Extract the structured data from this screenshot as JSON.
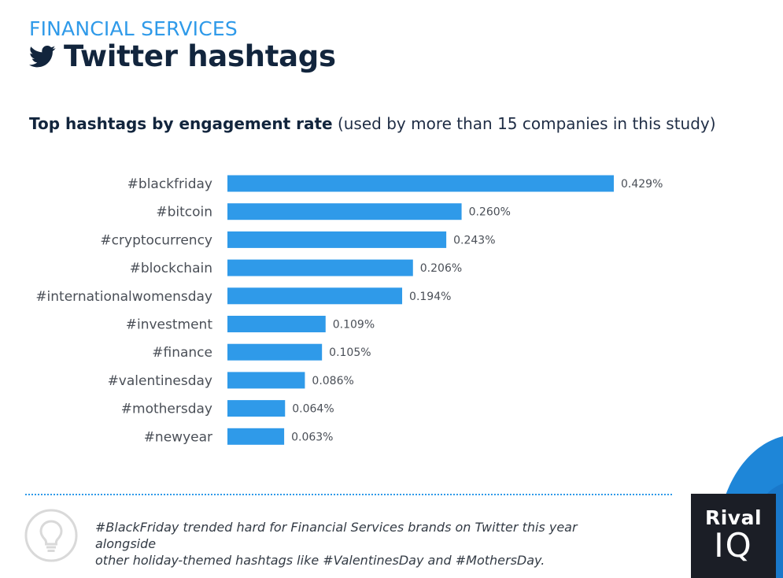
{
  "header": {
    "section_label": "FINANCIAL SERVICES",
    "title": "Twitter hashtags",
    "title_icon": "twitter-bird-icon"
  },
  "chart_subtitle": {
    "bold": "Top hashtags by engagement rate",
    "light": "(used by more than 15 companies in this study)"
  },
  "chart_data": {
    "type": "bar",
    "orientation": "horizontal",
    "title": "Top hashtags by engagement rate (used by more than 15 companies in this study)",
    "categories": [
      "#blackfriday",
      "#bitcoin",
      "#cryptocurrency",
      "#blockchain",
      "#internationalwomensday",
      "#investment",
      "#finance",
      "#valentinesday",
      "#mothersday",
      "#newyear"
    ],
    "values": [
      0.429,
      0.26,
      0.243,
      0.206,
      0.194,
      0.109,
      0.105,
      0.086,
      0.064,
      0.063
    ],
    "value_labels": [
      "0.429%",
      "0.260%",
      "0.243%",
      "0.206%",
      "0.194%",
      "0.109%",
      "0.105%",
      "0.086%",
      "0.064%",
      "0.063%"
    ],
    "unit": "%",
    "xlim": [
      0,
      0.429
    ],
    "grid": false,
    "legend": "none",
    "bar_color": "#2f9ae9"
  },
  "footnote": {
    "icon": "lightbulb-icon",
    "text_line1": "#BlackFriday trended hard for Financial Services brands on Twitter this year alongside",
    "text_line2": "other holiday-themed hashtags like #ValentinesDay and #MothersDay."
  },
  "logo": {
    "line1": "Rival",
    "line2": "IQ"
  },
  "colors": {
    "accent": "#2f9ae9",
    "title": "#12253d",
    "logo_bg": "#1b1e26",
    "deco_blue": "#1e86d8",
    "deco_red": "#e8452c"
  }
}
